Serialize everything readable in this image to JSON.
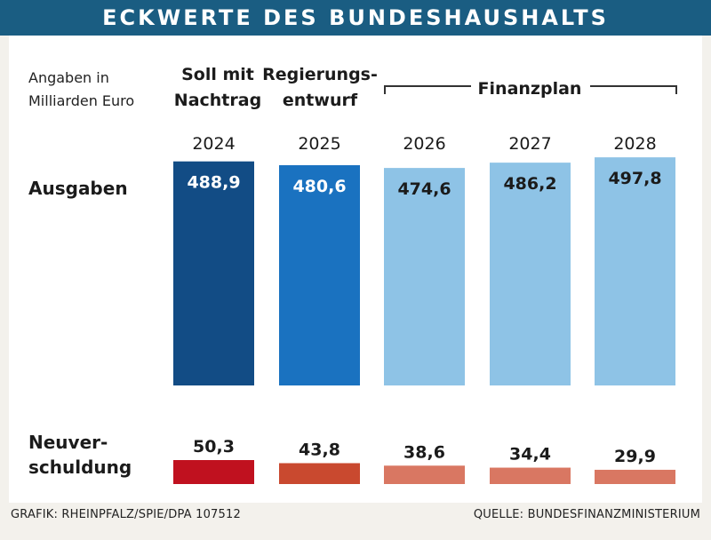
{
  "title": "ECKWERTE DES BUNDESHAUSHALTS",
  "unit_label": [
    "Angaben in",
    "Milliarden Euro"
  ],
  "column_headers": {
    "soll": [
      "Soll mit",
      "Nachtrag"
    ],
    "entwurf": [
      "Regierungs-",
      "entwurf"
    ],
    "finanzplan": "Finanzplan"
  },
  "row_labels": {
    "ausgaben": "Ausgaben",
    "neuverschuldung": [
      "Neuver-",
      "schuldung"
    ]
  },
  "footer": {
    "left": "GRAFIK: RHEINPFALZ/SPIE/DPA 107512",
    "right": "QUELLE: BUNDESFINANZMINISTERIUM"
  },
  "colors": {
    "header_bg": "#1a5d82",
    "ausgaben": [
      "#124c85",
      "#1a72c0",
      "#8ec3e6",
      "#8ec3e6",
      "#8ec3e6"
    ],
    "neuverschuldung": [
      "#c0111f",
      "#c9492f",
      "#d97762",
      "#d97762",
      "#d97762"
    ],
    "label_light": "#ffffff",
    "label_dark": "#1b1b1b"
  },
  "chart_data": {
    "type": "bar",
    "categories": [
      "2024",
      "2025",
      "2026",
      "2027",
      "2028"
    ],
    "series": [
      {
        "name": "Ausgaben",
        "values": [
          488.9,
          480.6,
          474.6,
          486.2,
          497.8
        ],
        "labels": [
          "488,9",
          "480,6",
          "474,6",
          "486,2",
          "497,8"
        ]
      },
      {
        "name": "Neuverschuldung",
        "values": [
          50.3,
          43.8,
          38.6,
          34.4,
          29.9
        ],
        "labels": [
          "50,3",
          "43,8",
          "38,6",
          "34,4",
          "29,9"
        ]
      }
    ]
  }
}
